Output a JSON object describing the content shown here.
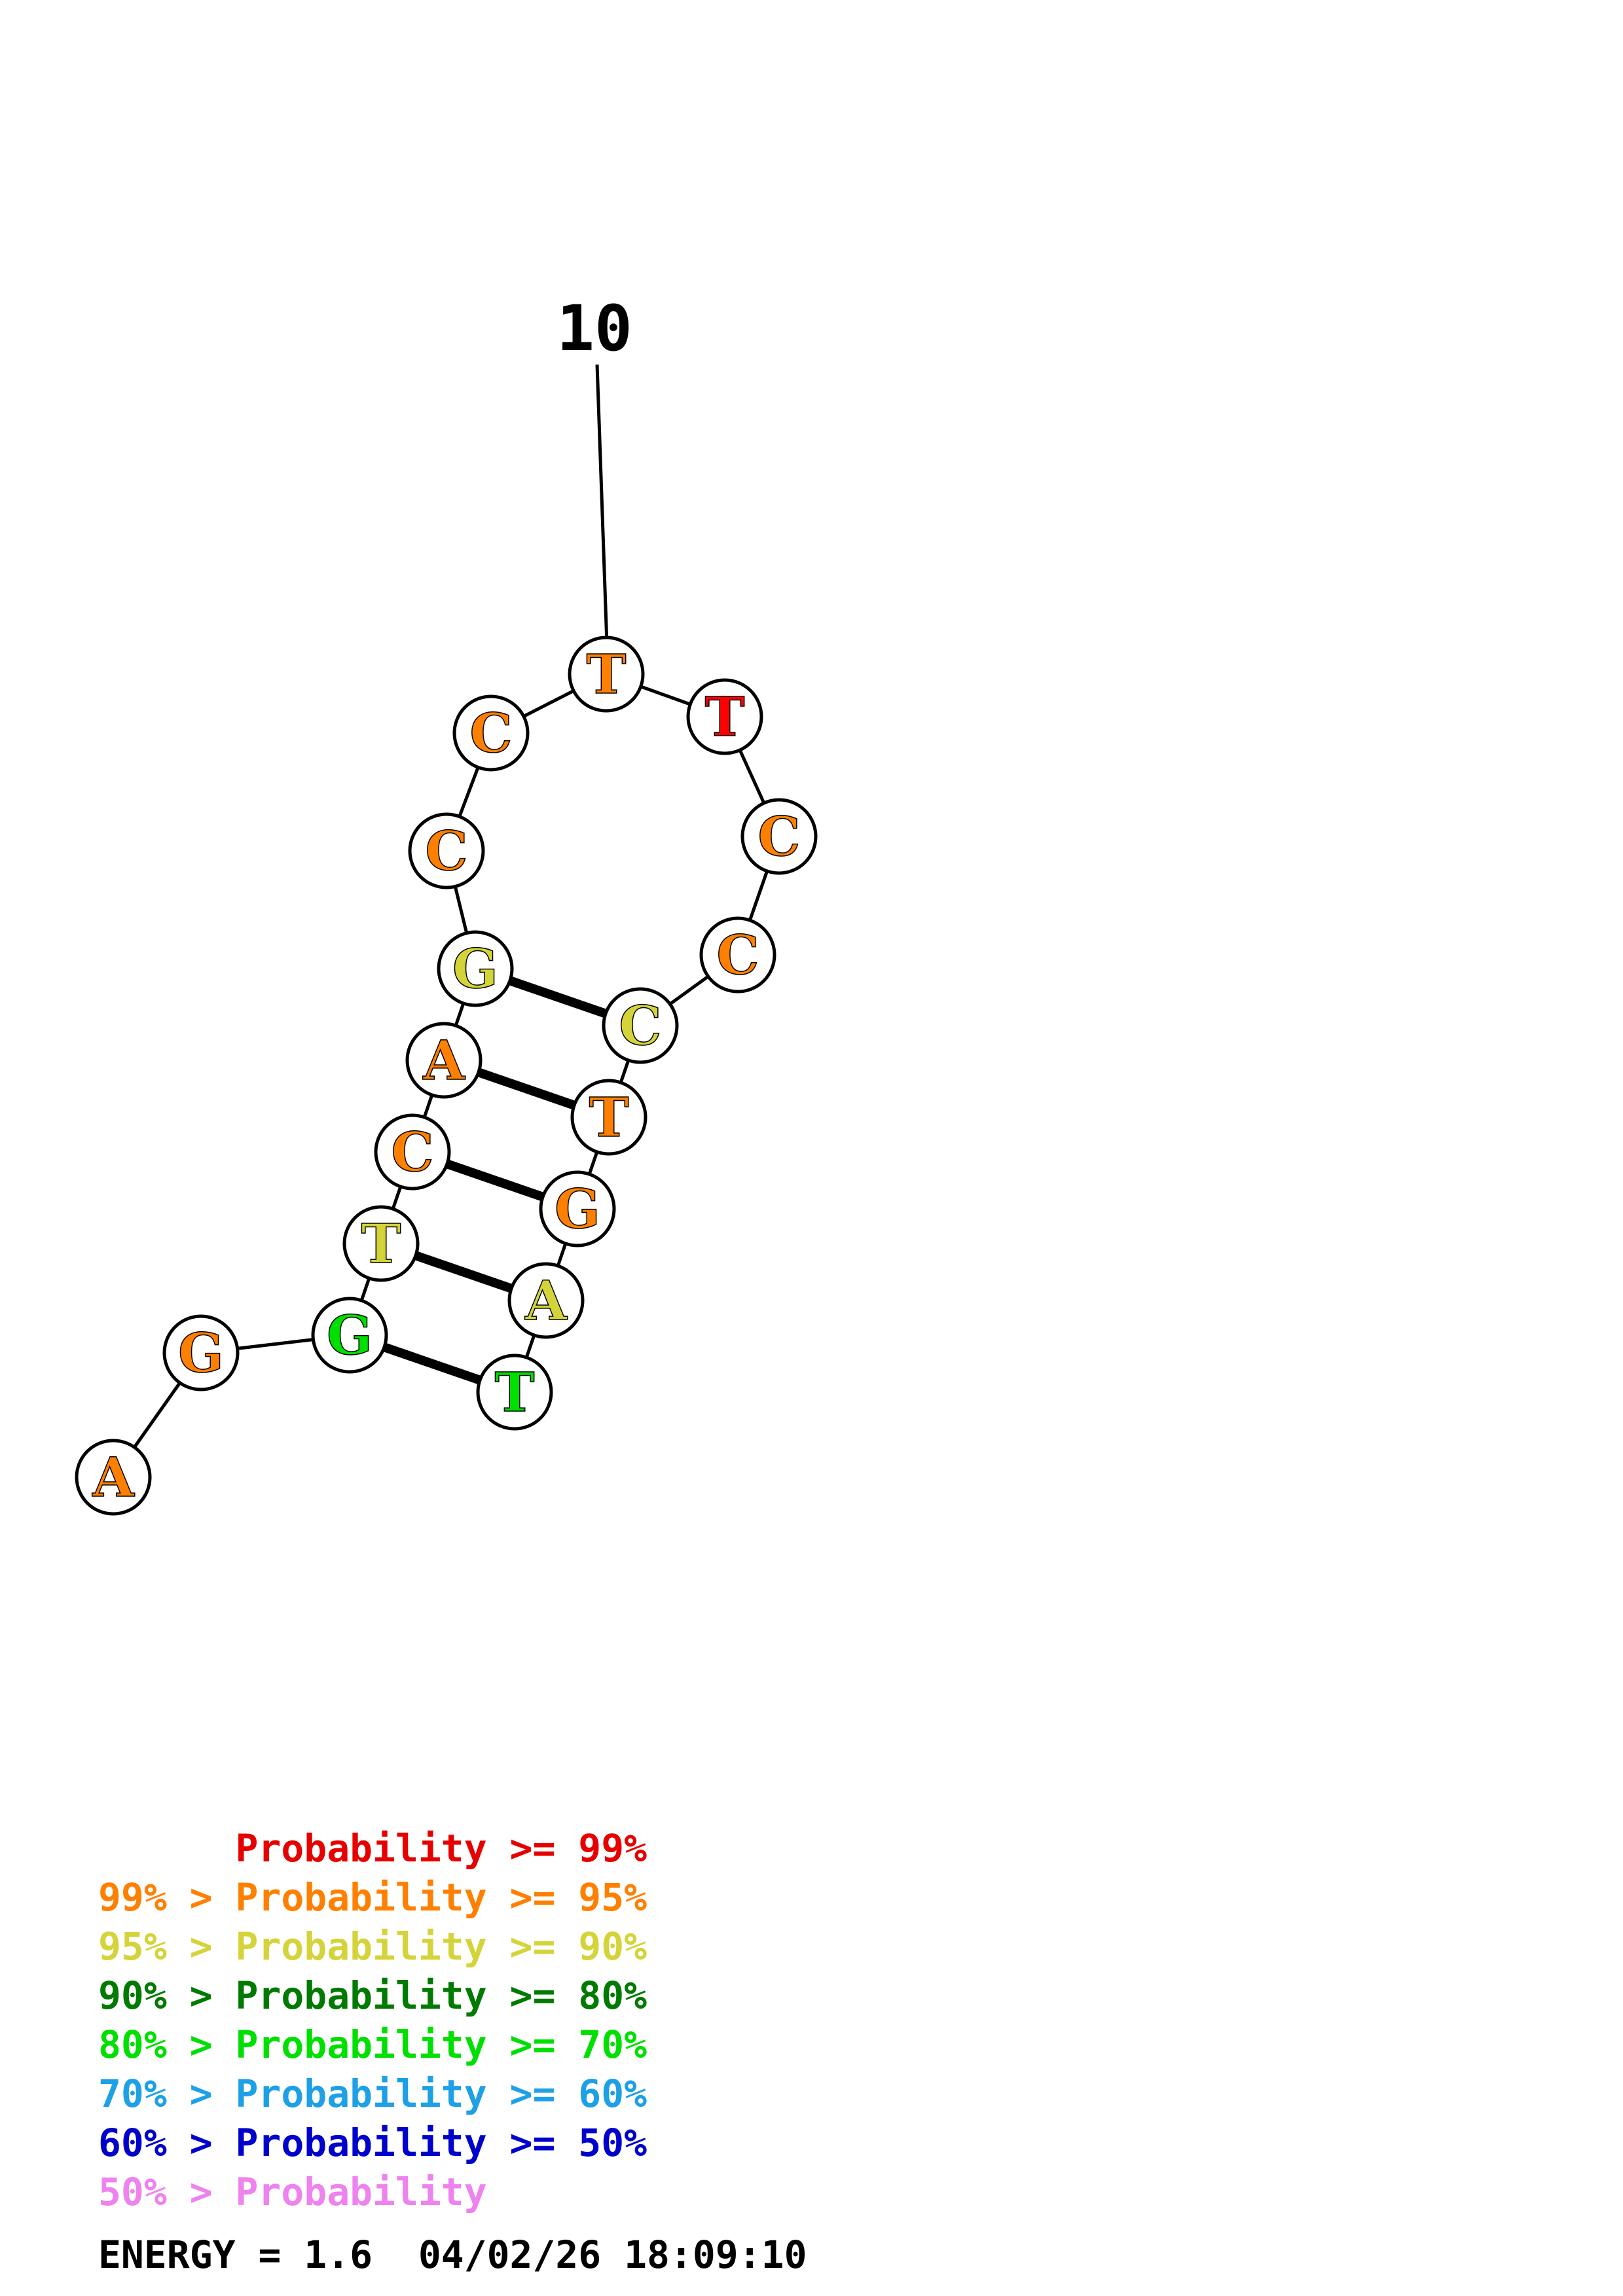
{
  "structure": {
    "sequence": [
      {
        "base": "A",
        "color": "#ff8000"
      },
      {
        "base": "G",
        "color": "#ff8000"
      },
      {
        "base": "G",
        "color": "#00e000"
      },
      {
        "base": "T",
        "color": "#d4d43a"
      },
      {
        "base": "C",
        "color": "#ff8000"
      },
      {
        "base": "A",
        "color": "#ff8000"
      },
      {
        "base": "G",
        "color": "#d4d43a"
      },
      {
        "base": "C",
        "color": "#ff8000"
      },
      {
        "base": "C",
        "color": "#ff8000"
      },
      {
        "base": "T",
        "color": "#ff8000"
      },
      {
        "base": "T",
        "color": "#ff0000"
      },
      {
        "base": "C",
        "color": "#ff8000"
      },
      {
        "base": "C",
        "color": "#ff8000"
      },
      {
        "base": "C",
        "color": "#d4d43a"
      },
      {
        "base": "T",
        "color": "#ff8000"
      },
      {
        "base": "G",
        "color": "#ff8000"
      },
      {
        "base": "A",
        "color": "#d4d43a"
      },
      {
        "base": "T",
        "color": "#00e000"
      }
    ],
    "pairs": [
      [
        3,
        18
      ],
      [
        4,
        17
      ],
      [
        5,
        16
      ],
      [
        6,
        15
      ],
      [
        7,
        14
      ]
    ],
    "position_label": "10",
    "labeled_position": 10
  },
  "legend": [
    {
      "text": "      Probability >= 99%",
      "color": "#e60000"
    },
    {
      "text": "99% > Probability >= 95%",
      "color": "#ff8000"
    },
    {
      "text": "95% > Probability >= 90%",
      "color": "#d4d43a"
    },
    {
      "text": "90% > Probability >= 80%",
      "color": "#007a00"
    },
    {
      "text": "80% > Probability >= 70%",
      "color": "#00e000"
    },
    {
      "text": "70% > Probability >= 60%",
      "color": "#1ea0e6"
    },
    {
      "text": "60% > Probability >= 50%",
      "color": "#0000cc"
    },
    {
      "text": "50% > Probability",
      "color": "#ee82ee"
    }
  ],
  "energy_line": "ENERGY = 1.6  04/02/26 18:09:10"
}
